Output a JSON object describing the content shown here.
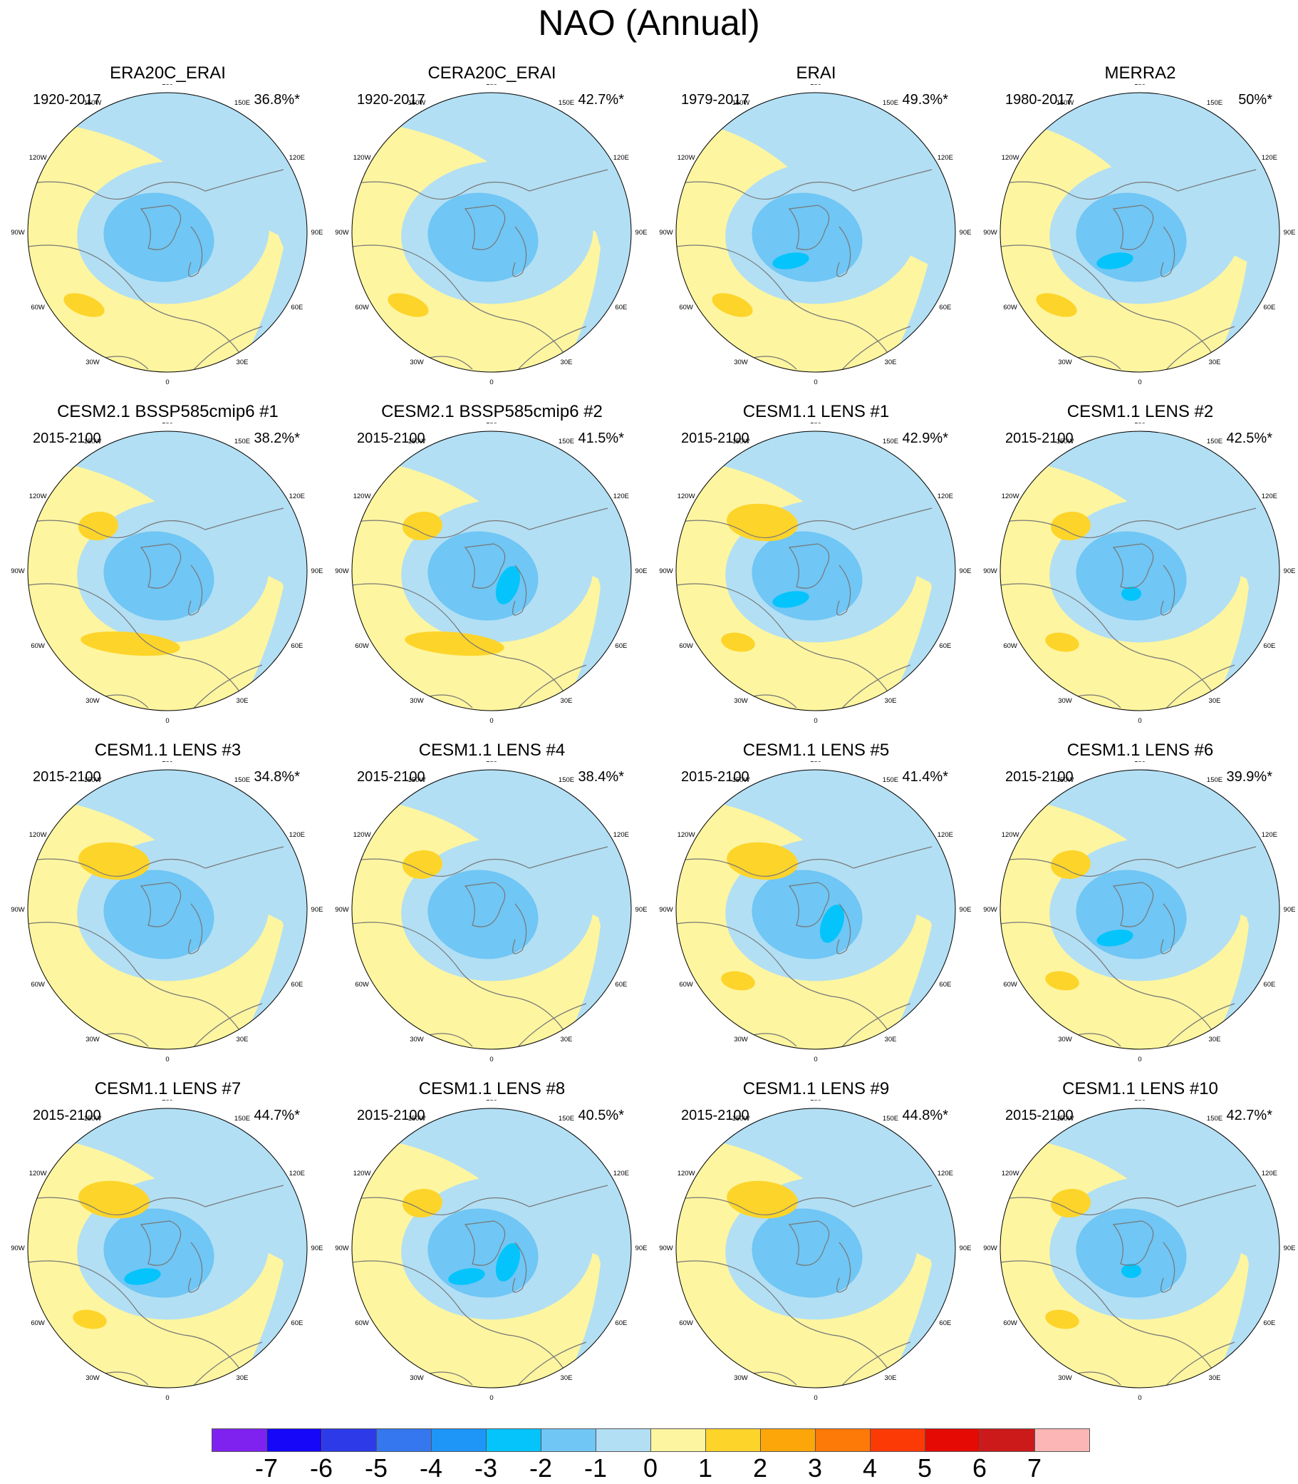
{
  "title": "NAO (Annual)",
  "colors": {
    "neg7": "#7f22f0",
    "neg6": "#1607f8",
    "neg5": "#2c3ae8",
    "neg4": "#3477ee",
    "neg3": "#1e96f8",
    "neg2": "#05c4fb",
    "neg1": "#70c6f4",
    "neg0": "#b2dff4",
    "pos0": "#fdf5a0",
    "pos1": "#fdd42a",
    "pos2": "#fda60a",
    "pos3": "#fd7a08",
    "pos4": "#fb3a06",
    "pos5": "#e60a04",
    "pos6": "#cc1a1a",
    "pos7": "#fdb6b6",
    "coast": "#777777"
  },
  "longitude_labels": [
    "180",
    "150E",
    "120E",
    "90E",
    "60E",
    "30E",
    "0",
    "30W",
    "60W",
    "90W",
    "120W",
    "150W"
  ],
  "panels": [
    {
      "title": "ERA20C_ERAI",
      "years": "1920-2017",
      "variance": "36.8%*"
    },
    {
      "title": "CERA20C_ERAI",
      "years": "1920-2017",
      "variance": "42.7%*"
    },
    {
      "title": "ERAI",
      "years": "1979-2017",
      "variance": "49.3%*"
    },
    {
      "title": "MERRA2",
      "years": "1980-2017",
      "variance": "50%*"
    },
    {
      "title": "CESM2.1 BSSP585cmip6 #1",
      "years": "2015-2100",
      "variance": "38.2%*"
    },
    {
      "title": "CESM2.1 BSSP585cmip6 #2",
      "years": "2015-2100",
      "variance": "41.5%*"
    },
    {
      "title": "CESM1.1 LENS #1",
      "years": "2015-2100",
      "variance": "42.9%*"
    },
    {
      "title": "CESM1.1 LENS #2",
      "years": "2015-2100",
      "variance": "42.5%*"
    },
    {
      "title": "CESM1.1 LENS #3",
      "years": "2015-2100",
      "variance": "34.8%*"
    },
    {
      "title": "CESM1.1 LENS #4",
      "years": "2015-2100",
      "variance": "38.4%*"
    },
    {
      "title": "CESM1.1 LENS #5",
      "years": "2015-2100",
      "variance": "41.4%*"
    },
    {
      "title": "CESM1.1 LENS #6",
      "years": "2015-2100",
      "variance": "39.9%*"
    },
    {
      "title": "CESM1.1 LENS #7",
      "years": "2015-2100",
      "variance": "44.7%*"
    },
    {
      "title": "CESM1.1 LENS #8",
      "years": "2015-2100",
      "variance": "40.5%*"
    },
    {
      "title": "CESM1.1 LENS #9",
      "years": "2015-2100",
      "variance": "44.8%*"
    },
    {
      "title": "CESM1.1 LENS #10",
      "years": "2015-2100",
      "variance": "42.7%*"
    }
  ],
  "colorbar": {
    "labels": [
      "-7",
      "-6",
      "-5",
      "-4",
      "-3",
      "-2",
      "-1",
      "0",
      "1",
      "2",
      "3",
      "4",
      "5",
      "6",
      "7"
    ],
    "colors": [
      "#7f22f0",
      "#1607f8",
      "#2c3ae8",
      "#3477ee",
      "#1e96f8",
      "#05c4fb",
      "#70c6f4",
      "#b2dff4",
      "#fdf5a0",
      "#fdd42a",
      "#fda60a",
      "#fd7a08",
      "#fb3a06",
      "#e60a04",
      "#cc1a1a",
      "#fdb6b6"
    ]
  }
}
